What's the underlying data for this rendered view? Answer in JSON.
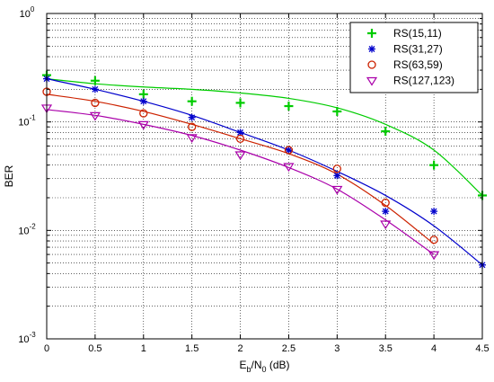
{
  "chart_data": {
    "type": "line",
    "xlabel": {
      "base": "E",
      "sub1": "b",
      "mid": "/N",
      "sub2": "0",
      "suffix": " (dB)"
    },
    "ylabel": "BER",
    "yscale": "log",
    "xlim": [
      0,
      4.5
    ],
    "ylim": [
      0.001,
      1
    ],
    "grid": true,
    "legend_position": "top-right",
    "x_ticks": [
      "0",
      "0.5",
      "1",
      "1.5",
      "2",
      "2.5",
      "3",
      "3.5",
      "4",
      "4.5"
    ],
    "y_ticks": [
      {
        "base": "10",
        "exp": "0",
        "value": 1
      },
      {
        "base": "10",
        "exp": "-1",
        "value": 0.1
      },
      {
        "base": "10",
        "exp": "-2",
        "value": 0.01
      },
      {
        "base": "10",
        "exp": "-3",
        "value": 0.001
      }
    ],
    "series": [
      {
        "name": "RS(15,11)",
        "color": "#00cc00",
        "marker": "plus",
        "x": [
          0,
          0.5,
          1,
          1.5,
          2,
          2.5,
          3,
          3.5,
          4,
          4.5
        ],
        "y": [
          0.27,
          0.24,
          0.18,
          0.155,
          0.15,
          0.14,
          0.125,
          0.082,
          0.04,
          0.021
        ],
        "fit": {
          "x": [
            0,
            0.5,
            1,
            1.5,
            2,
            2.5,
            3,
            3.5,
            4,
            4.5
          ],
          "y": [
            0.25,
            0.225,
            0.21,
            0.2,
            0.185,
            0.165,
            0.135,
            0.095,
            0.055,
            0.021
          ]
        }
      },
      {
        "name": "RS(31,27)",
        "color": "#0000cc",
        "marker": "star",
        "x": [
          0,
          0.5,
          1,
          1.5,
          2,
          2.5,
          3,
          3.5,
          4,
          4.5
        ],
        "y": [
          0.25,
          0.2,
          0.155,
          0.11,
          0.08,
          0.055,
          0.032,
          0.015,
          0.015,
          0.0048
        ],
        "fit": {
          "x": [
            0,
            0.5,
            1,
            1.5,
            2,
            2.5,
            3,
            3.5,
            4,
            4.5
          ],
          "y": [
            0.25,
            0.2,
            0.155,
            0.115,
            0.08,
            0.055,
            0.035,
            0.021,
            0.011,
            0.0048
          ]
        }
      },
      {
        "name": "RS(63,59)",
        "color": "#cc2200",
        "marker": "circle",
        "x": [
          0,
          0.5,
          1,
          1.5,
          2,
          2.5,
          3,
          3.5,
          4
        ],
        "y": [
          0.19,
          0.15,
          0.12,
          0.09,
          0.07,
          0.055,
          0.037,
          0.018,
          0.0082
        ],
        "fit": {
          "x": [
            0,
            0.5,
            1,
            1.5,
            2,
            2.5,
            3,
            3.5,
            4
          ],
          "y": [
            0.18,
            0.155,
            0.125,
            0.095,
            0.07,
            0.051,
            0.033,
            0.017,
            0.0075
          ]
        }
      },
      {
        "name": "RS(127,123)",
        "color": "#aa00aa",
        "marker": "triangle-down",
        "x": [
          0,
          0.5,
          1,
          1.5,
          2,
          2.5,
          3,
          3.5,
          4
        ],
        "y": [
          0.135,
          0.115,
          0.095,
          0.072,
          0.05,
          0.039,
          0.024,
          0.0115,
          0.006
        ],
        "fit": {
          "x": [
            0,
            0.5,
            1,
            1.5,
            2,
            2.5,
            3,
            3.5,
            4
          ],
          "y": [
            0.13,
            0.115,
            0.095,
            0.075,
            0.055,
            0.038,
            0.024,
            0.0125,
            0.006
          ]
        }
      }
    ]
  }
}
